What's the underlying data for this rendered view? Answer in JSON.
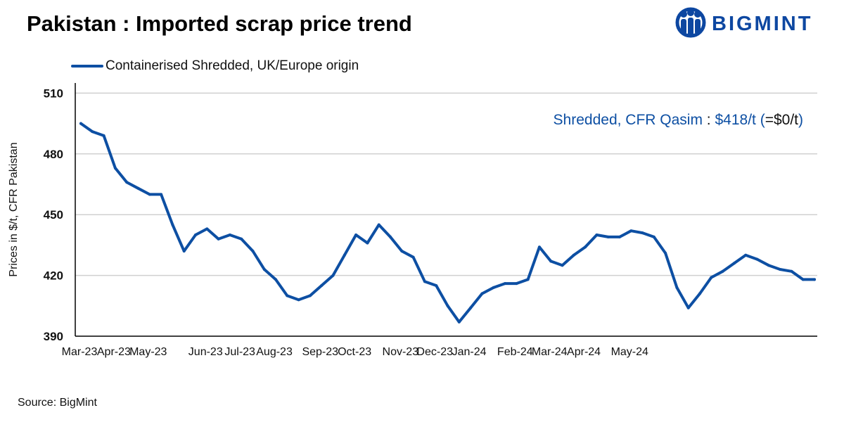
{
  "header": {
    "title": "Pakistan : Imported scrap price trend",
    "logo_text": "BIGMINT",
    "logo_icon": "bigmint-people-icon"
  },
  "footer": {
    "source": "Source: BigMint"
  },
  "colors": {
    "series": "#0d4fa3",
    "brand": "#0d47a1",
    "grid": "#d0d0d0",
    "axis": "#000000"
  },
  "chart_data": {
    "type": "line",
    "title": "Pakistan : Imported scrap price trend",
    "xlabel": "",
    "ylabel": "Prices in $/t, CFR Pakistan",
    "ylim": [
      390,
      515
    ],
    "yticks": [
      390,
      420,
      450,
      480,
      510
    ],
    "grid": true,
    "legend_position": "top-left",
    "x_tick_labels": [
      "Mar-23",
      "Apr-23",
      "May-23",
      "Jun-23",
      "Jul-23",
      "Aug-23",
      "Sep-23",
      "Oct-23",
      "Nov-23",
      "Dec-23",
      "Jan-24",
      "Feb-24",
      "Mar-24",
      "Apr-24",
      "May-24"
    ],
    "x_tick_index": [
      0,
      3,
      6,
      11,
      14,
      17,
      21,
      24,
      28,
      31,
      34,
      38,
      41,
      44,
      48
    ],
    "series": [
      {
        "name": "Containerised Shredded, UK/Europe origin",
        "values": [
          495,
          491,
          489,
          473,
          466,
          463,
          460,
          460,
          445,
          432,
          440,
          443,
          438,
          440,
          438,
          432,
          423,
          418,
          410,
          408,
          410,
          415,
          420,
          430,
          440,
          436,
          445,
          439,
          432,
          429,
          417,
          415,
          405,
          397,
          404,
          411,
          414,
          416,
          416,
          418,
          434,
          427,
          425,
          430,
          434,
          440,
          439,
          439,
          442,
          441,
          439,
          431,
          414,
          404,
          411,
          419,
          422,
          426,
          430,
          428,
          425,
          423,
          422,
          418,
          418
        ]
      }
    ],
    "annotation": {
      "label": "Shredded, CFR Qasim",
      "separator": " : ",
      "price": "$418/t",
      "change_open": " (",
      "change": "=$0/t",
      "change_close": ")"
    }
  }
}
